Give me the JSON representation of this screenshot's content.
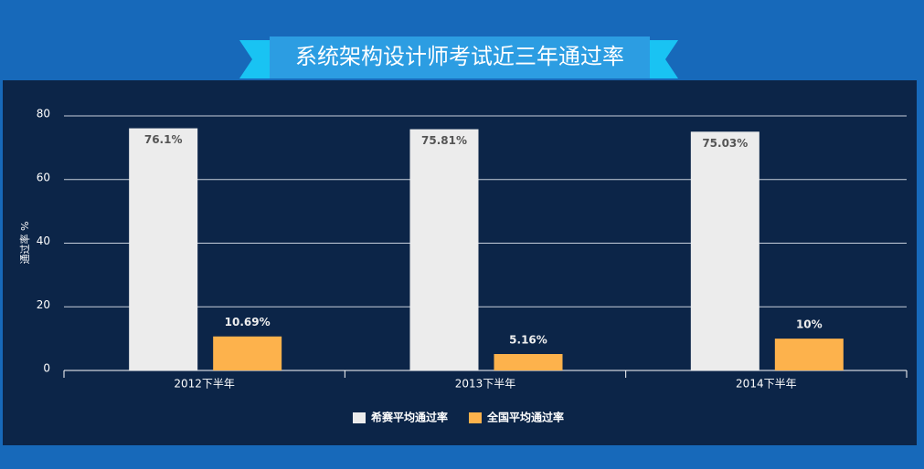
{
  "chart_data": {
    "type": "bar",
    "title": "系统架构设计师考试近三年通过率",
    "y_label": "通过率 %",
    "categories": [
      "2012下半年",
      "2013下半年",
      "2014下半年"
    ],
    "series": [
      {
        "name": "希赛平均通过率",
        "color": "#ececec",
        "values": [
          76.1,
          75.81,
          75.03
        ],
        "value_labels": [
          "76.1%",
          "75.81%",
          "75.03%"
        ]
      },
      {
        "name": "全国平均通过率",
        "color": "#fdb24c",
        "values": [
          10.69,
          5.16,
          10
        ],
        "value_labels": [
          "10.69%",
          "5.16%",
          "10%"
        ]
      }
    ],
    "ylim": [
      0,
      80
    ],
    "yticks": [
      0,
      20,
      40,
      60,
      80
    ],
    "grid": true,
    "legend": "bottom"
  }
}
